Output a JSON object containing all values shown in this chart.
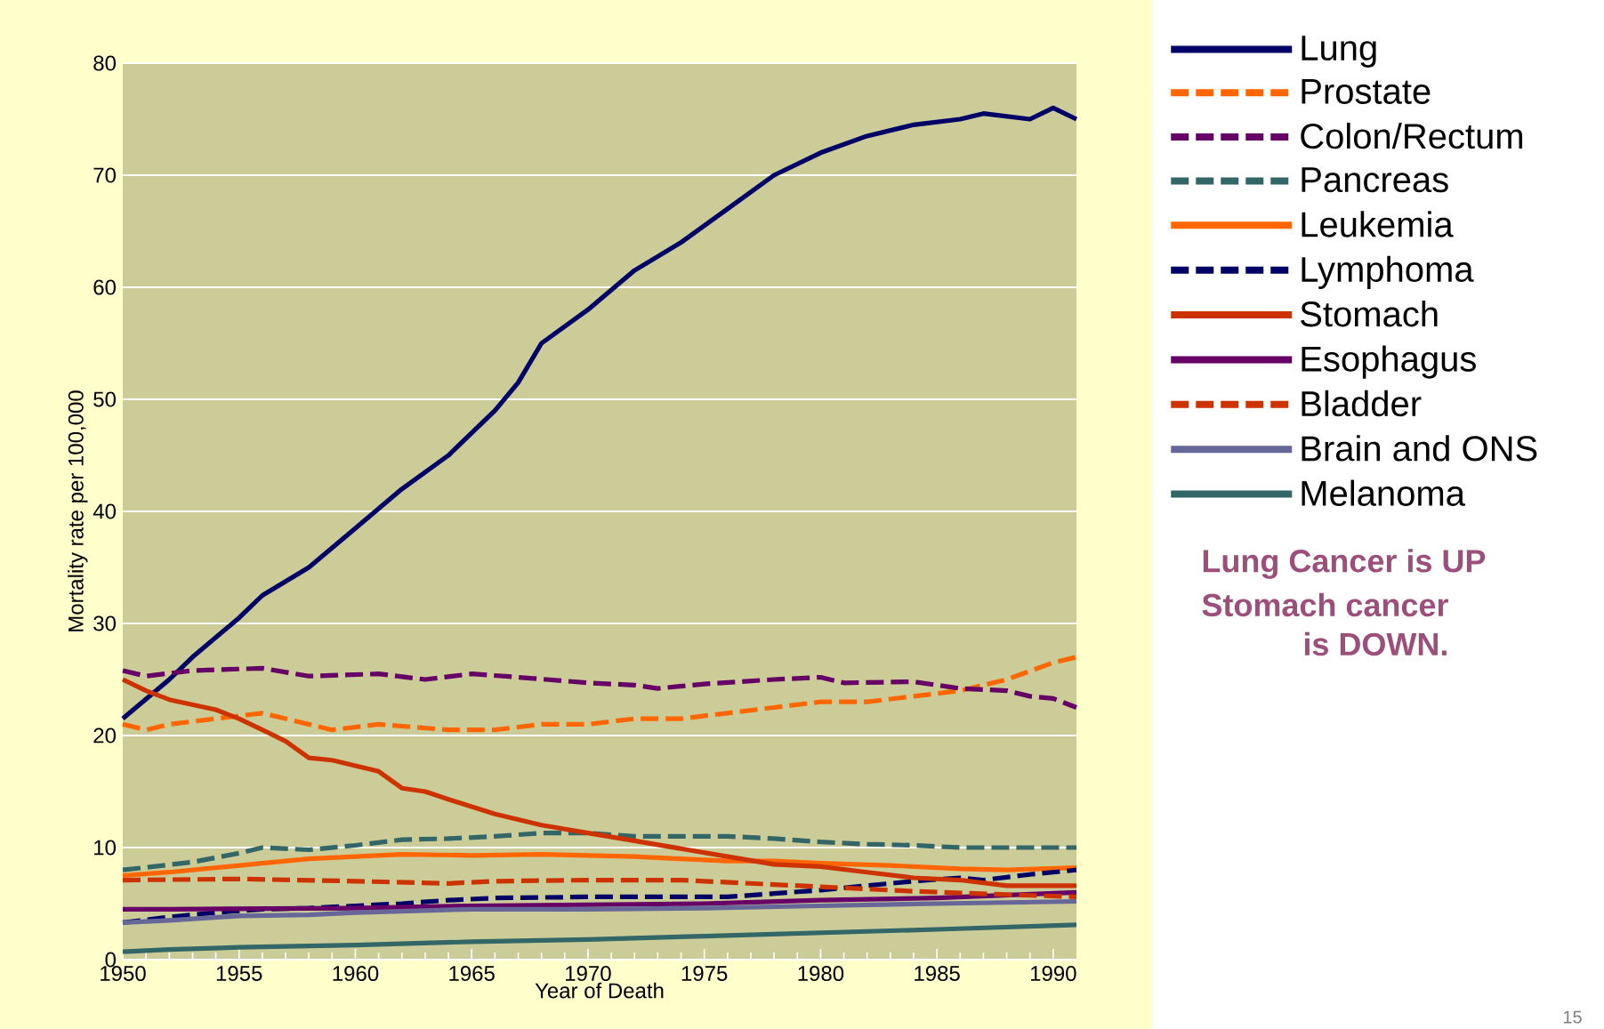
{
  "chart_data": {
    "type": "line",
    "xlabel": "Year of Death",
    "ylabel": "Mortality rate per 100,000",
    "xlim": [
      1950,
      1991
    ],
    "ylim": [
      0,
      80
    ],
    "xticks": [
      1950,
      1955,
      1960,
      1965,
      1970,
      1975,
      1980,
      1985,
      1990
    ],
    "yticks": [
      0,
      10,
      20,
      30,
      40,
      50,
      60,
      70,
      80
    ],
    "grid": "y",
    "legend": "right",
    "annotations": [
      "Lung Cancer is UP",
      "Stomach cancer",
      "is DOWN.",
      "15"
    ],
    "series": [
      {
        "name": "Lung",
        "color": "#000066",
        "line_style": "solid",
        "x": [
          1950,
          1952,
          1953,
          1955,
          1956,
          1958,
          1960,
          1962,
          1964,
          1966,
          1967,
          1968,
          1970,
          1972,
          1974,
          1976,
          1978,
          1980,
          1982,
          1984,
          1986,
          1987,
          1989,
          1990,
          1991
        ],
        "values": [
          21.5,
          25,
          27,
          30.5,
          32.5,
          35,
          38.5,
          42,
          45,
          49,
          51.5,
          55,
          58,
          61.5,
          64,
          67,
          70,
          72,
          73.5,
          74.5,
          75,
          75.5,
          75,
          76,
          75
        ]
      },
      {
        "name": "Prostate",
        "color": "#ff6600",
        "line_style": "dashed",
        "x": [
          1950,
          1951,
          1952,
          1954,
          1956,
          1958,
          1959,
          1961,
          1964,
          1966,
          1968,
          1970,
          1972,
          1974,
          1976,
          1978,
          1980,
          1982,
          1984,
          1986,
          1988,
          1990,
          1991
        ],
        "values": [
          21,
          20.5,
          21,
          21.5,
          22,
          21,
          20.5,
          21,
          20.5,
          20.5,
          21,
          21,
          21.5,
          21.5,
          22,
          22.5,
          23,
          23,
          23.5,
          24,
          25,
          26.5,
          27
        ]
      },
      {
        "name": "Colon/Rectum",
        "color": "#660066",
        "line_style": "dashed",
        "x": [
          1950,
          1951,
          1953,
          1956,
          1958,
          1961,
          1963,
          1965,
          1967,
          1970,
          1972,
          1973,
          1975,
          1978,
          1980,
          1981,
          1984,
          1986,
          1988,
          1989,
          1990,
          1991
        ],
        "values": [
          25.8,
          25.3,
          25.8,
          26,
          25.3,
          25.5,
          25,
          25.5,
          25.2,
          24.7,
          24.5,
          24.2,
          24.6,
          25,
          25.2,
          24.7,
          24.8,
          24.2,
          24,
          23.5,
          23.3,
          22.5
        ]
      },
      {
        "name": "Pancreas",
        "color": "#336666",
        "line_style": "dashed",
        "x": [
          1950,
          1953,
          1955,
          1956,
          1958,
          1960,
          1962,
          1964,
          1966,
          1968,
          1970,
          1972,
          1974,
          1976,
          1978,
          1980,
          1982,
          1984,
          1986,
          1991
        ],
        "values": [
          8,
          8.7,
          9.5,
          10,
          9.8,
          10.2,
          10.7,
          10.8,
          11,
          11.3,
          11.3,
          11,
          11,
          11,
          10.8,
          10.5,
          10.3,
          10.2,
          10,
          10
        ]
      },
      {
        "name": "Leukemia",
        "color": "#ff6600",
        "line_style": "solid",
        "x": [
          1950,
          1952,
          1954,
          1956,
          1958,
          1960,
          1962,
          1965,
          1968,
          1970,
          1972,
          1974,
          1976,
          1978,
          1980,
          1983,
          1986,
          1988,
          1991
        ],
        "values": [
          7.5,
          7.8,
          8.2,
          8.6,
          9,
          9.2,
          9.4,
          9.3,
          9.4,
          9.3,
          9.2,
          9,
          8.8,
          8.8,
          8.6,
          8.4,
          8.1,
          8,
          8.2
        ]
      },
      {
        "name": "Lymphoma",
        "color": "#000066",
        "line_style": "dashed",
        "x": [
          1950,
          1952,
          1954,
          1956,
          1958,
          1960,
          1962,
          1964,
          1966,
          1970,
          1974,
          1976,
          1978,
          1980,
          1982,
          1984,
          1986,
          1987,
          1989,
          1991
        ],
        "values": [
          3.3,
          3.8,
          4.2,
          4.5,
          4.6,
          4.8,
          5,
          5.3,
          5.5,
          5.6,
          5.6,
          5.6,
          5.9,
          6.2,
          6.6,
          7,
          7.3,
          7.1,
          7.6,
          8
        ]
      },
      {
        "name": "Stomach",
        "color": "#cc3300",
        "line_style": "solid",
        "x": [
          1950,
          1951,
          1952,
          1954,
          1955,
          1956,
          1957,
          1958,
          1959,
          1961,
          1962,
          1963,
          1964,
          1966,
          1968,
          1970,
          1972,
          1974,
          1976,
          1978,
          1980,
          1982,
          1984,
          1986,
          1988,
          1991
        ],
        "values": [
          25,
          24,
          23.2,
          22.3,
          21.5,
          20.5,
          19.5,
          18,
          17.8,
          16.8,
          15.3,
          15,
          14.3,
          13,
          12,
          11.3,
          10.6,
          9.9,
          9.2,
          8.5,
          8.3,
          7.8,
          7.3,
          7.1,
          6.6,
          6.6
        ]
      },
      {
        "name": "Esophagus",
        "color": "#660066",
        "line_style": "solid",
        "x": [
          1950,
          1952,
          1960,
          1965,
          1970,
          1975,
          1980,
          1985,
          1991
        ],
        "values": [
          4.5,
          4.5,
          4.6,
          4.8,
          4.9,
          5,
          5.3,
          5.5,
          6
        ]
      },
      {
        "name": "Bladder",
        "color": "#cc3300",
        "line_style": "dashed",
        "x": [
          1950,
          1955,
          1960,
          1964,
          1966,
          1970,
          1974,
          1978,
          1980,
          1984,
          1988,
          1991
        ],
        "values": [
          7.1,
          7.2,
          7,
          6.8,
          7,
          7.1,
          7.1,
          6.7,
          6.5,
          6.1,
          5.8,
          5.6
        ]
      },
      {
        "name": "Brain and ONS",
        "color": "#666699",
        "line_style": "solid",
        "x": [
          1950,
          1952,
          1955,
          1958,
          1960,
          1965,
          1970,
          1975,
          1980,
          1985,
          1991
        ],
        "values": [
          3.3,
          3.5,
          3.9,
          4,
          4.2,
          4.5,
          4.5,
          4.6,
          4.8,
          5,
          5.2
        ]
      },
      {
        "name": "Melanoma",
        "color": "#336666",
        "line_style": "solid",
        "x": [
          1950,
          1952,
          1955,
          1960,
          1965,
          1970,
          1975,
          1980,
          1985,
          1991
        ],
        "values": [
          0.7,
          0.9,
          1.1,
          1.3,
          1.6,
          1.8,
          2.1,
          2.4,
          2.7,
          3.1
        ]
      }
    ]
  }
}
